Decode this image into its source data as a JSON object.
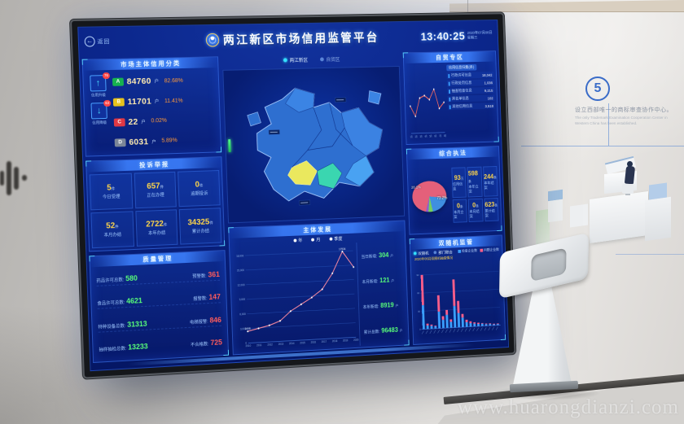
{
  "photo": {
    "watermark": "www.huarongdianzi.com"
  },
  "wall": {
    "step_number": "5",
    "headline_zh": "设立西部唯一的商标审查协作中心。",
    "subline_en_1": "The only Trademark Examination Cooperation Center in",
    "subline_en_2": "Western China has been established."
  },
  "dashboard": {
    "back_label": "返回",
    "back_arrow": "←",
    "title": "两江新区市场信用监管平台",
    "clock_time": "13:40:25",
    "clock_date": "2020年07月08日",
    "clock_week": "星期三",
    "region_tabs": [
      {
        "label": "两江新区"
      },
      {
        "label": "自贸区"
      }
    ],
    "credit": {
      "title": "市场主体信用分类",
      "up_arrow": "↑",
      "down_arrow": "↓",
      "up_badge": "76",
      "up_label": "信用升级",
      "down_badge": "63",
      "down_label": "信用降级",
      "unit": "户",
      "rows": [
        {
          "grade": "A",
          "color": "#17b24f",
          "count": "84760",
          "pct": "82.68%"
        },
        {
          "grade": "B",
          "color": "#e6c31d",
          "count": "11701",
          "pct": "11.41%"
        },
        {
          "grade": "C",
          "color": "#e03844",
          "count": "22",
          "pct": "0.02%"
        },
        {
          "grade": "D",
          "color": "#7c8698",
          "count": "6031",
          "pct": "5.89%"
        }
      ]
    },
    "complaints": {
      "title": "投诉举报",
      "cells": [
        {
          "value": "5",
          "unit": "件",
          "label": "今日受理"
        },
        {
          "value": "657",
          "unit": "件",
          "label": "正在办理"
        },
        {
          "value": "0",
          "unit": "件",
          "label": "逾期投诉"
        },
        {
          "value": "52",
          "unit": "件",
          "label": "本月办结"
        },
        {
          "value": "2722",
          "unit": "件",
          "label": "本年办结"
        },
        {
          "value": "34325",
          "unit": "件",
          "label": "累计办结"
        }
      ]
    },
    "quality": {
      "title": "质量管理",
      "rows": [
        {
          "l_label": "药品许可总数:",
          "l_value": "580",
          "r_label": "预警数:",
          "r_value": "361"
        },
        {
          "l_label": "食品许可总数:",
          "l_value": "4621",
          "r_label": "报警数:",
          "r_value": "147"
        },
        {
          "l_label": "特种设备总数:",
          "l_value": "31313",
          "r_label": "电梯报警:",
          "r_value": "846"
        },
        {
          "l_label": "抽样抽检总数:",
          "l_value": "13233",
          "r_label": "不合格数:",
          "r_value": "725"
        }
      ]
    },
    "development": {
      "title": "主体发展",
      "stats": [
        {
          "label": "当日新增:",
          "value": "304",
          "unit": "户"
        },
        {
          "label": "本月新增:",
          "value": "121",
          "unit": "户"
        },
        {
          "label": "本年新增:",
          "value": "8919",
          "unit": "户"
        },
        {
          "label": "累计总数:",
          "value": "96483",
          "unit": "户"
        }
      ]
    },
    "ftz": {
      "title": "自贸专区",
      "list_header": "信用信息归集(条)",
      "rows": [
        {
          "label": "行政许可信息",
          "value": "18,042"
        },
        {
          "label": "行政处罚信息",
          "value": "1,036"
        },
        {
          "label": "抽查检查信息",
          "value": "9,215"
        },
        {
          "label": "黑名单信息",
          "value": "102"
        },
        {
          "label": "其他信用信息",
          "value": "3,518"
        }
      ]
    },
    "enforcement": {
      "title": "综合执法",
      "stats": [
        {
          "value": "93",
          "unit": "万",
          "label": "信用信息"
        },
        {
          "value": "598",
          "unit": "条",
          "label": "本年立案"
        },
        {
          "value": "244",
          "unit": "条",
          "label": "本年结案"
        },
        {
          "value": "0",
          "unit": "条",
          "label": "本月立案"
        },
        {
          "value": "0",
          "unit": "条",
          "label": "本月结案"
        },
        {
          "value": "623",
          "unit": "条",
          "label": "累计结案"
        }
      ]
    },
    "random": {
      "title": "双随机监管",
      "tabs": [
        "双随机",
        "部门联合"
      ],
      "note": "2020年06月双随机抽查情况"
    }
  },
  "chart_data": [
    {
      "type": "line",
      "title": "主体发展",
      "legend": [
        "年",
        "月",
        "季度"
      ],
      "x": [
        "2010",
        "2011",
        "2012",
        "2013",
        "2014",
        "2015",
        "2016",
        "2017",
        "2018",
        "2019",
        "2020"
      ],
      "values": [
        2408,
        2900,
        3400,
        4200,
        6100,
        7400,
        8700,
        10300,
        13500,
        17934,
        14600
      ],
      "ylim": [
        0,
        18000
      ],
      "yticks": [
        0,
        3000,
        6000,
        9000,
        12000,
        15000,
        18000
      ],
      "point_labels": {
        "0": "2408",
        "9": "17934"
      },
      "line_color": "#ff8ca0",
      "xlabel": "",
      "ylabel": ""
    },
    {
      "type": "line",
      "title": "自贸专区",
      "x": [
        "1月",
        "2月",
        "3月",
        "4月",
        "5月",
        "6月",
        "7月",
        "8月"
      ],
      "values": [
        45,
        28,
        58,
        62,
        55,
        72,
        40,
        50
      ],
      "ylim": [
        0,
        100
      ],
      "line_color": "#ff6b5e"
    },
    {
      "type": "pie",
      "title": "综合执法",
      "slices": [
        {
          "label": "73.2%",
          "value": 73.2,
          "color": "#e4607a"
        },
        {
          "label": "20.1%",
          "value": 20.1,
          "color": "#3f8fe0"
        },
        {
          "label": "",
          "value": 4.2,
          "color": "#74d05c"
        },
        {
          "label": "",
          "value": 2.5,
          "color": "#8a5fd0"
        }
      ]
    },
    {
      "type": "bar",
      "title": "双随机监管",
      "legend": [
        "检查企业数",
        "问题企业数"
      ],
      "colors": [
        "#3aa0ff",
        "#ff5f8a"
      ],
      "series": [
        {
          "name": "检查企业数",
          "values": [
            40,
            6,
            5,
            4,
            28,
            14,
            22,
            10,
            36,
            24,
            16,
            8,
            6,
            5,
            4,
            4,
            3,
            3,
            2,
            2
          ]
        },
        {
          "name": "问题企业数",
          "values": [
            50,
            3,
            2,
            1,
            27,
            6,
            8,
            4,
            44,
            20,
            6,
            4,
            3,
            2,
            2,
            1,
            1,
            1,
            1,
            1
          ]
        }
      ],
      "ylim": [
        0,
        100
      ]
    }
  ]
}
